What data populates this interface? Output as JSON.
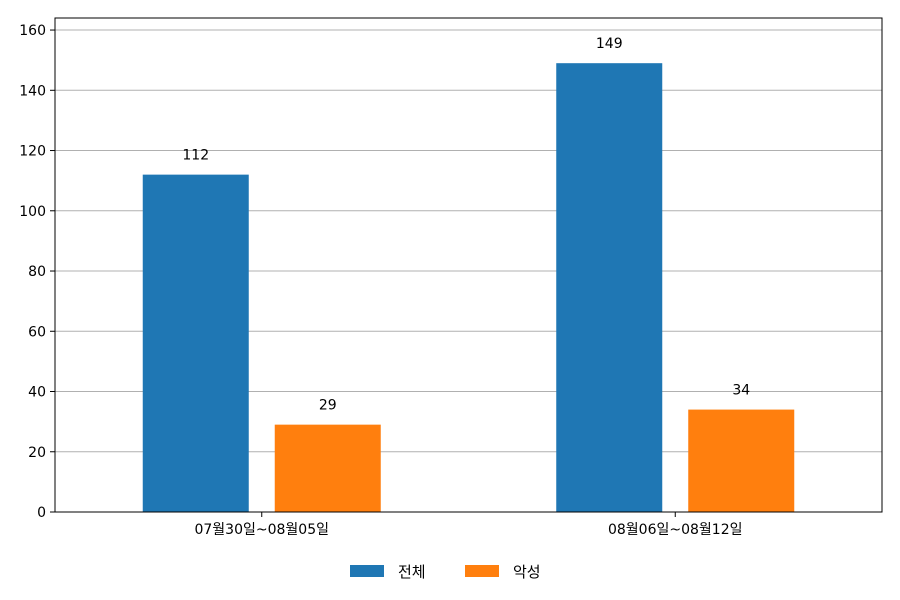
{
  "chart_data": {
    "type": "bar",
    "categories": [
      "07월30일~08월05일",
      "08월06일~08월12일"
    ],
    "series": [
      {
        "name": "전체",
        "values": [
          112,
          149
        ],
        "color": "#1f77b4"
      },
      {
        "name": "악성",
        "values": [
          29,
          34
        ],
        "color": "#ff7f0e"
      }
    ],
    "ylim": [
      0,
      164
    ],
    "yticks": [
      0,
      20,
      40,
      60,
      80,
      100,
      120,
      140,
      160
    ],
    "grid": "horizontal",
    "legend_position": "bottom-center",
    "data_labels": true
  }
}
